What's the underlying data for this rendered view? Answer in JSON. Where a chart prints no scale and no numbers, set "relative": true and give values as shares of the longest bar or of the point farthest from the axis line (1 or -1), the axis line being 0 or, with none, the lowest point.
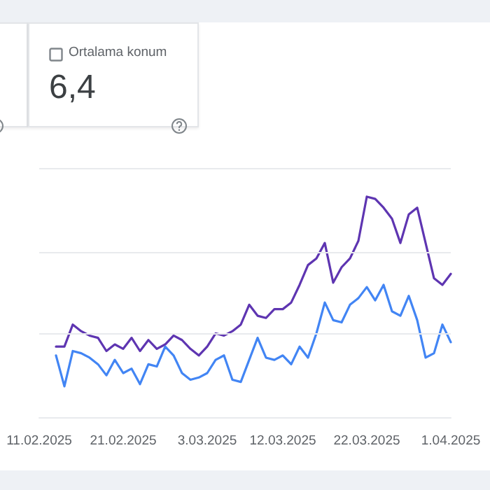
{
  "chart_data": [
    {
      "type": "other",
      "title": "Ortalama konum",
      "annotations": [
        "6,4"
      ]
    },
    {
      "type": "line",
      "relative": true,
      "ref_lines": [
        {
          "axis": "y",
          "value": 0.38,
          "color": "#e8eaed"
        },
        {
          "axis": "y",
          "value": 0.75,
          "color": "#e8eaed"
        },
        {
          "axis": "y",
          "value": 1.13,
          "color": "#e8eaed"
        }
      ],
      "categories": [
        "11.02.2025",
        null,
        null,
        null,
        null,
        null,
        null,
        null,
        null,
        null,
        "21.02.2025",
        null,
        null,
        null,
        null,
        null,
        null,
        null,
        null,
        null,
        "3.03.2025",
        null,
        null,
        null,
        null,
        null,
        null,
        null,
        null,
        "12.03.2025",
        null,
        null,
        null,
        null,
        null,
        null,
        null,
        null,
        null,
        "22.03.2025",
        null,
        null,
        null,
        null,
        null,
        null,
        null,
        null,
        null,
        "1.04.2025"
      ],
      "series": [
        {
          "color": "#5e35b1",
          "values": [
            null,
            null,
            0.32,
            0.32,
            0.42,
            0.39,
            0.37,
            0.36,
            0.3,
            0.33,
            0.31,
            0.36,
            0.3,
            0.35,
            0.31,
            0.33,
            0.37,
            0.35,
            0.31,
            0.28,
            0.32,
            0.38,
            0.37,
            0.39,
            0.42,
            0.51,
            0.46,
            0.45,
            0.49,
            0.49,
            0.52,
            0.6,
            0.69,
            0.72,
            0.79,
            0.61,
            0.68,
            0.72,
            0.8,
            1,
            0.99,
            0.95,
            0.9,
            0.79,
            0.92,
            0.95,
            0.79,
            0.63,
            0.6,
            0.65
          ]
        },
        {
          "color": "#4285f4",
          "values": [
            null,
            null,
            0.28,
            0.14,
            0.3,
            0.29,
            0.27,
            0.24,
            0.19,
            0.26,
            0.2,
            0.22,
            0.15,
            0.24,
            0.23,
            0.32,
            0.28,
            0.2,
            0.17,
            0.18,
            0.2,
            0.26,
            0.28,
            0.17,
            0.16,
            0.26,
            0.36,
            0.27,
            0.26,
            0.28,
            0.24,
            0.32,
            0.27,
            0.38,
            0.52,
            0.44,
            0.43,
            0.51,
            0.54,
            0.59,
            0.53,
            0.6,
            0.48,
            0.46,
            0.55,
            0.44,
            0.27,
            0.29,
            0.42,
            0.34
          ]
        }
      ]
    }
  ]
}
